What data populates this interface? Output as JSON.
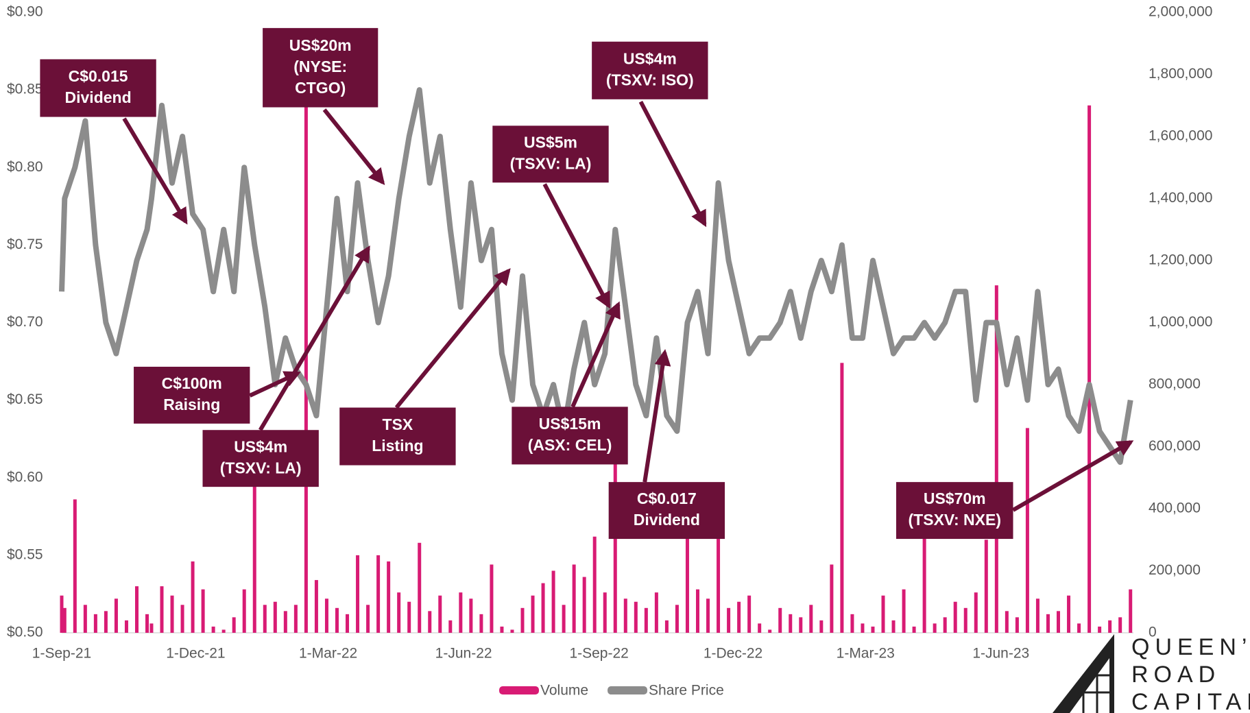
{
  "chart_data": {
    "type": "bar-line",
    "x": [
      "2021-09-01",
      "2021-09-03",
      "2021-09-10",
      "2021-09-17",
      "2021-09-24",
      "2021-10-01",
      "2021-10-08",
      "2021-10-15",
      "2021-10-22",
      "2021-10-29",
      "2021-11-01",
      "2021-11-08",
      "2021-11-15",
      "2021-11-22",
      "2021-11-29",
      "2021-12-06",
      "2021-12-13",
      "2021-12-20",
      "2021-12-27",
      "2022-01-03",
      "2022-01-10",
      "2022-01-17",
      "2022-01-24",
      "2022-01-31",
      "2022-02-07",
      "2022-02-14",
      "2022-02-21",
      "2022-02-28",
      "2022-03-07",
      "2022-03-14",
      "2022-03-21",
      "2022-03-28",
      "2022-04-04",
      "2022-04-11",
      "2022-04-18",
      "2022-04-25",
      "2022-05-02",
      "2022-05-09",
      "2022-05-16",
      "2022-05-23",
      "2022-05-30",
      "2022-06-06",
      "2022-06-13",
      "2022-06-20",
      "2022-06-27",
      "2022-07-04",
      "2022-07-11",
      "2022-07-18",
      "2022-07-25",
      "2022-08-01",
      "2022-08-08",
      "2022-08-15",
      "2022-08-22",
      "2022-08-29",
      "2022-09-05",
      "2022-09-12",
      "2022-09-19",
      "2022-09-26",
      "2022-10-03",
      "2022-10-10",
      "2022-10-17",
      "2022-10-24",
      "2022-10-31",
      "2022-11-07",
      "2022-11-14",
      "2022-11-21",
      "2022-11-28",
      "2022-12-05",
      "2022-12-12",
      "2022-12-19",
      "2022-12-26",
      "2023-01-02",
      "2023-01-09",
      "2023-01-16",
      "2023-01-23",
      "2023-01-30",
      "2023-02-06",
      "2023-02-13",
      "2023-02-20",
      "2023-02-27",
      "2023-03-06",
      "2023-03-13",
      "2023-03-20",
      "2023-03-27",
      "2023-04-03",
      "2023-04-10",
      "2023-04-17",
      "2023-04-24",
      "2023-05-01",
      "2023-05-08",
      "2023-05-15",
      "2023-05-22",
      "2023-05-29",
      "2023-06-05",
      "2023-06-12",
      "2023-06-19",
      "2023-06-26",
      "2023-07-03",
      "2023-07-10",
      "2023-07-17",
      "2023-07-24",
      "2023-07-31",
      "2023-08-07",
      "2023-08-14",
      "2023-08-21",
      "2023-08-28"
    ],
    "series": [
      {
        "name": "Volume",
        "color": "#d81b74",
        "axis": "y2",
        "values": [
          120000,
          80000,
          430000,
          90000,
          60000,
          70000,
          110000,
          40000,
          150000,
          60000,
          30000,
          150000,
          120000,
          90000,
          230000,
          140000,
          20000,
          10000,
          50000,
          140000,
          500000,
          90000,
          100000,
          70000,
          90000,
          1700000,
          170000,
          110000,
          80000,
          60000,
          250000,
          90000,
          250000,
          230000,
          130000,
          100000,
          290000,
          70000,
          120000,
          40000,
          130000,
          110000,
          60000,
          220000,
          20000,
          10000,
          80000,
          120000,
          160000,
          200000,
          90000,
          220000,
          180000,
          310000,
          130000,
          600000,
          110000,
          100000,
          80000,
          130000,
          40000,
          90000,
          320000,
          140000,
          110000,
          350000,
          80000,
          100000,
          120000,
          30000,
          10000,
          80000,
          60000,
          50000,
          90000,
          40000,
          220000,
          870000,
          60000,
          30000,
          20000,
          120000,
          40000,
          140000,
          20000,
          310000,
          30000,
          50000,
          100000,
          80000,
          130000,
          300000,
          1120000,
          70000,
          50000,
          660000,
          110000,
          60000,
          70000,
          120000,
          30000,
          1700000,
          20000,
          40000,
          50000,
          140000
        ]
      },
      {
        "name": "Share Price",
        "color": "#8c8c8c",
        "values": [
          0.72,
          0.78,
          0.8,
          0.83,
          0.75,
          0.7,
          0.68,
          0.71,
          0.74,
          0.76,
          0.78,
          0.84,
          0.79,
          0.82,
          0.77,
          0.76,
          0.72,
          0.76,
          0.72,
          0.8,
          0.75,
          0.71,
          0.66,
          0.69,
          0.67,
          0.66,
          0.64,
          0.71,
          0.78,
          0.72,
          0.79,
          0.74,
          0.7,
          0.73,
          0.78,
          0.82,
          0.85,
          0.79,
          0.82,
          0.76,
          0.71,
          0.79,
          0.74,
          0.76,
          0.68,
          0.65,
          0.73,
          0.66,
          0.64,
          0.66,
          0.63,
          0.67,
          0.7,
          0.66,
          0.68,
          0.76,
          0.71,
          0.66,
          0.64,
          0.69,
          0.64,
          0.63,
          0.7,
          0.72,
          0.68,
          0.79,
          0.74,
          0.71,
          0.68,
          0.69,
          0.69,
          0.7,
          0.72,
          0.69,
          0.72,
          0.74,
          0.72,
          0.75,
          0.69,
          0.69,
          0.74,
          0.71,
          0.68,
          0.69,
          0.69,
          0.7,
          0.69,
          0.7,
          0.72,
          0.72,
          0.65,
          0.7,
          0.7,
          0.66,
          0.69,
          0.65,
          0.72,
          0.66,
          0.67,
          0.64,
          0.63,
          0.66,
          0.63,
          0.62,
          0.61,
          0.65
        ]
      }
    ],
    "xlim": [
      "2021-09-01",
      "2023-08-30"
    ],
    "xticks": [
      {
        "value": "2021-09-01",
        "label": "1-Sep-21"
      },
      {
        "value": "2021-12-01",
        "label": "1-Dec-21"
      },
      {
        "value": "2022-03-01",
        "label": "1-Mar-22"
      },
      {
        "value": "2022-06-01",
        "label": "1-Jun-22"
      },
      {
        "value": "2022-09-01",
        "label": "1-Sep-22"
      },
      {
        "value": "2022-12-01",
        "label": "1-Dec-22"
      },
      {
        "value": "2023-03-01",
        "label": "1-Mar-23"
      },
      {
        "value": "2023-06-01",
        "label": "1-Jun-23"
      }
    ],
    "ylim": [
      0.5,
      0.9
    ],
    "yticks": [
      {
        "value": 0.5,
        "label": "$0.50"
      },
      {
        "value": 0.55,
        "label": "$0.55"
      },
      {
        "value": 0.6,
        "label": "$0.60"
      },
      {
        "value": 0.65,
        "label": "$0.65"
      },
      {
        "value": 0.7,
        "label": "$0.70"
      },
      {
        "value": 0.75,
        "label": "$0.75"
      },
      {
        "value": 0.8,
        "label": "$0.80"
      },
      {
        "value": 0.85,
        "label": "$0.85"
      },
      {
        "value": 0.9,
        "label": "$0.90"
      }
    ],
    "y2lim": [
      0,
      2000000
    ],
    "y2ticks": [
      0,
      {
        "value": 200000,
        "label": "200,000"
      },
      {
        "value": 400000,
        "label": "400,000"
      },
      {
        "value": 600000,
        "label": "600,000"
      },
      {
        "value": 800000,
        "label": "800,000"
      },
      {
        "value": 1000000,
        "label": "1,000,000"
      },
      {
        "value": 1200000,
        "label": "1,200,000"
      },
      {
        "value": 1400000,
        "label": "1,400,000"
      },
      {
        "value": 1600000,
        "label": "1,600,000"
      },
      {
        "value": 1800000,
        "label": "1,800,000"
      },
      {
        "value": 2000000,
        "label": "2,000,000"
      }
    ],
    "legend": "bottom",
    "annotation_color": "#6b1038",
    "annotations": [
      {
        "lines": [
          "C$0.015",
          "Dividend"
        ]
      },
      {
        "lines": [
          "US$20m",
          "(NYSE:",
          "CTGO)"
        ]
      },
      {
        "lines": [
          "US$5m",
          "(TSXV: LA)"
        ]
      },
      {
        "lines": [
          "US$4m",
          "(TSXV: ISO)"
        ]
      },
      {
        "lines": [
          "C$100m",
          "Raising"
        ]
      },
      {
        "lines": [
          "US$4m",
          "(TSXV: LA)"
        ]
      },
      {
        "lines": [
          "TSX",
          "Listing"
        ]
      },
      {
        "lines": [
          "US$15m",
          "(ASX: CEL)"
        ]
      },
      {
        "lines": [
          "C$0.017",
          "Dividend"
        ]
      },
      {
        "lines": [
          "US$70m",
          "(TSXV: NXE)"
        ]
      }
    ],
    "logo": [
      "QUEEN’S",
      "ROAD",
      "CAPITAL"
    ]
  }
}
